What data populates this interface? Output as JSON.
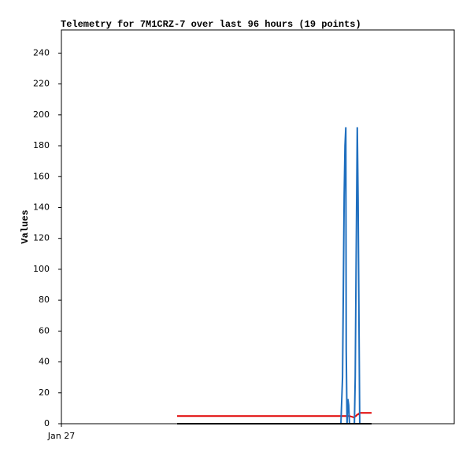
{
  "chart_data": {
    "type": "line",
    "title": "Telemetry for 7M1CRZ-7 over last 96 hours (19 points)",
    "y_label": "Values",
    "x": [
      28.28,
      68.3,
      68.7,
      68.9,
      69.1,
      69.3,
      69.5,
      69.6,
      69.8,
      70.0,
      70.2,
      70.4,
      71.6,
      71.8,
      72.0,
      72.3,
      72.5,
      72.9,
      75.8
    ],
    "xlim": [
      0,
      96
    ],
    "xticks": [
      {
        "value": 0,
        "label": "Jan 27"
      }
    ],
    "ylim": [
      0,
      255
    ],
    "yticks": [
      0,
      20,
      40,
      60,
      80,
      100,
      120,
      140,
      160,
      180,
      200,
      220,
      240
    ],
    "series": [
      {
        "color": "#e00000",
        "values": [
          5,
          5,
          5,
          5,
          5,
          5,
          5,
          5,
          5,
          5,
          5,
          5,
          4,
          5,
          5,
          6,
          6,
          7,
          7
        ]
      },
      {
        "color": "#1f6fbf",
        "values": [
          0,
          0,
          30,
          88,
          148,
          180,
          192,
          48,
          0,
          16,
          12,
          0,
          0,
          30,
          98,
          192,
          145,
          0,
          0
        ]
      },
      {
        "color": "#000000",
        "values": [
          0,
          0,
          0,
          0,
          0,
          0,
          0,
          0,
          0,
          0,
          0,
          0,
          0,
          0,
          0,
          0,
          0,
          0,
          0
        ]
      }
    ]
  }
}
